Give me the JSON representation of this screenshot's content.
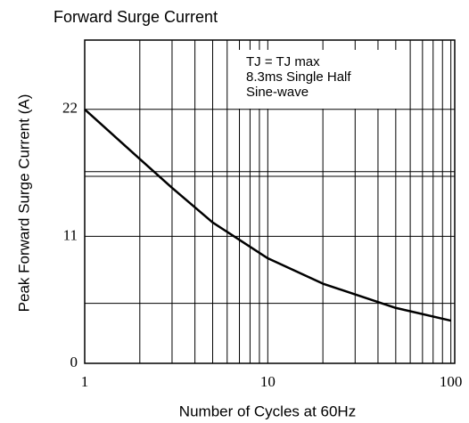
{
  "chart_data": {
    "type": "line",
    "title": "Forward Surge Current",
    "xlabel": "Number of Cycles at 60Hz",
    "ylabel": "Peak Forward Surge Current (A)",
    "annotation": [
      "TJ = TJ max",
      "8.3ms Single Half",
      "Sine-wave"
    ],
    "x": [
      1,
      2,
      3,
      5,
      10,
      20,
      50,
      100
    ],
    "series": [
      {
        "color": "#000000",
        "values": [
          22,
          17.7,
          15.2,
          12.2,
          9.1,
          6.9,
          4.8,
          3.7
        ]
      }
    ],
    "xlim": [
      1,
      105
    ],
    "xscale": "log",
    "xticks": [
      1,
      10,
      100
    ],
    "x_gridlines": [
      2,
      3,
      4,
      5,
      6,
      7,
      8,
      9,
      20,
      30,
      40,
      50,
      60,
      70,
      80,
      90
    ],
    "ylim": [
      0,
      28
    ],
    "yticks": [
      0,
      11,
      22
    ],
    "y_gridlines": [
      5.2,
      16.2,
      16.6
    ],
    "grid": true
  }
}
